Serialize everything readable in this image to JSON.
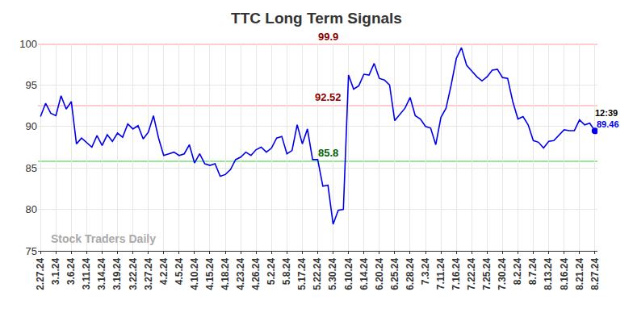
{
  "chart_data": {
    "type": "line",
    "title": "TTC Long Term Signals",
    "categories": [
      "2.27.24",
      null,
      null,
      "3.1.24",
      null,
      null,
      "3.6.24",
      null,
      null,
      "3.11.24",
      null,
      null,
      "3.14.24",
      null,
      null,
      "3.19.24",
      null,
      null,
      "3.22.24",
      null,
      null,
      "3.27.24",
      null,
      null,
      "4.2.24",
      null,
      null,
      "4.5.24",
      null,
      null,
      "4.10.24",
      null,
      null,
      "4.15.24",
      null,
      null,
      "4.18.24",
      null,
      null,
      "4.23.24",
      null,
      null,
      "4.26.24",
      null,
      null,
      "5.2.24",
      null,
      null,
      "5.8.24",
      null,
      null,
      "5.17.24",
      null,
      null,
      "5.22.24",
      null,
      null,
      "5.30.24",
      null,
      null,
      "6.10.24",
      null,
      null,
      "6.14.24",
      null,
      null,
      "6.20.24",
      null,
      null,
      "6.25.24",
      null,
      null,
      "6.28.24",
      null,
      null,
      "7.3.24",
      null,
      null,
      "7.11.24",
      null,
      null,
      "7.16.24",
      null,
      null,
      "7.22.24",
      null,
      null,
      "7.25.24",
      null,
      null,
      "7.30.24",
      null,
      null,
      "8.2.24",
      null,
      null,
      "8.7.24",
      null,
      null,
      "8.13.24",
      null,
      null,
      "8.16.24",
      null,
      null,
      "8.21.24",
      null,
      null,
      "8.27.24"
    ],
    "values": [
      91.2,
      92.8,
      91.6,
      91.3,
      93.7,
      92.1,
      93.0,
      87.9,
      88.6,
      88.0,
      87.5,
      88.9,
      87.7,
      89.0,
      88.2,
      89.2,
      88.7,
      90.3,
      89.7,
      90.1,
      88.5,
      89.3,
      91.3,
      88.6,
      86.5,
      86.7,
      86.9,
      86.5,
      86.7,
      87.8,
      85.6,
      86.7,
      85.5,
      85.3,
      85.5,
      84.0,
      84.2,
      84.8,
      86.0,
      86.3,
      86.9,
      86.5,
      87.2,
      87.5,
      86.9,
      87.4,
      88.6,
      88.8,
      86.7,
      87.1,
      90.2,
      87.9,
      89.7,
      86.0,
      86.0,
      82.8,
      82.9,
      78.2,
      79.9,
      80.0,
      96.2,
      94.5,
      94.9,
      96.3,
      96.2,
      97.6,
      95.8,
      95.6,
      95.0,
      90.7,
      91.5,
      92.2,
      93.5,
      91.3,
      90.9,
      90.0,
      89.8,
      87.8,
      91.1,
      92.2,
      95.0,
      98.2,
      99.5,
      97.4,
      96.7,
      96.0,
      95.5,
      96.0,
      96.8,
      96.9,
      95.9,
      95.8,
      93.0,
      90.9,
      91.2,
      90.2,
      88.3,
      88.1,
      87.4,
      88.2,
      88.3,
      89.0,
      89.6,
      89.5,
      89.5,
      90.8,
      90.2,
      90.4,
      89.46
    ],
    "color": "#0000ee",
    "ylim": [
      75,
      100
    ],
    "yticks": [
      75,
      80,
      85,
      90,
      95,
      100
    ],
    "grid": true,
    "reference_lines": [
      {
        "value": 99.9,
        "label": "99.9",
        "color": "#ffcccc",
        "label_color": "#8b0000"
      },
      {
        "value": 92.52,
        "label": "92.52",
        "color": "#ffcccc",
        "label_color": "#8b0000"
      },
      {
        "value": 85.8,
        "label": "85.8",
        "color": "#99e699",
        "label_color": "#006400"
      }
    ],
    "last_point": {
      "time": "12:39",
      "label": "89.46"
    },
    "watermark": "Stock Traders Daily"
  }
}
